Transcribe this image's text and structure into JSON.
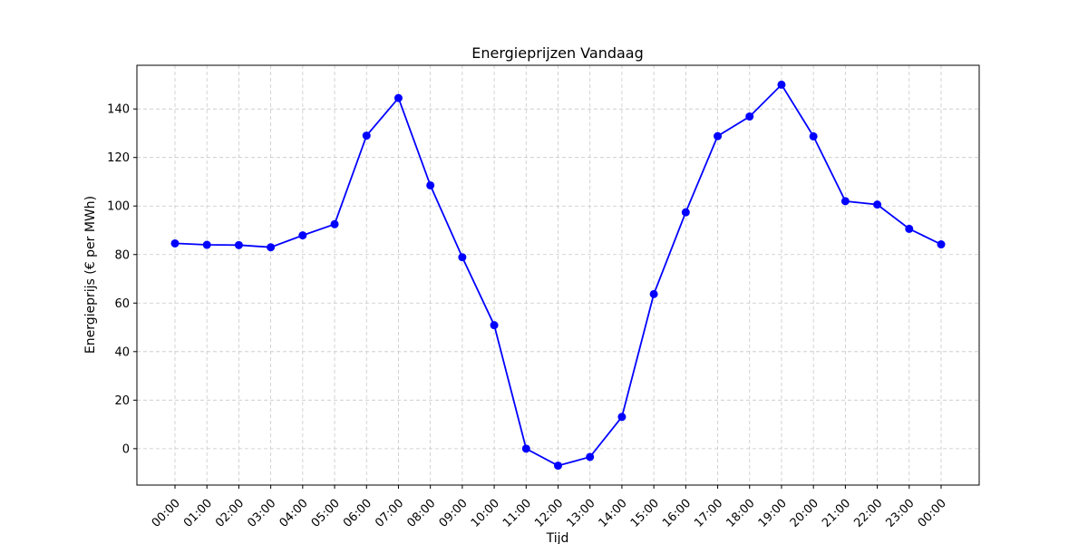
{
  "chart_data": {
    "type": "line",
    "title": "Energieprijzen Vandaag",
    "xlabel": "Tijd",
    "ylabel": "Energieprijs (€ per MWh)",
    "categories": [
      "00:00",
      "01:00",
      "02:00",
      "03:00",
      "04:00",
      "05:00",
      "06:00",
      "07:00",
      "08:00",
      "09:00",
      "10:00",
      "11:00",
      "12:00",
      "13:00",
      "14:00",
      "15:00",
      "16:00",
      "17:00",
      "18:00",
      "19:00",
      "20:00",
      "21:00",
      "22:00",
      "23:00",
      "00:00"
    ],
    "values": [
      84.6,
      84.0,
      83.9,
      83.0,
      87.9,
      92.5,
      129.0,
      144.5,
      108.5,
      78.9,
      50.9,
      0.0,
      -7.0,
      -3.4,
      13.1,
      63.7,
      97.4,
      128.8,
      136.9,
      150.0,
      128.7,
      102.0,
      100.6,
      90.6,
      84.2
    ],
    "ylim": [
      -15,
      158
    ],
    "yticks": [
      0,
      20,
      40,
      60,
      80,
      100,
      120,
      140
    ],
    "grid": true,
    "marker": "circle",
    "color": "#0000ff",
    "grid_color": "#c8c8c8"
  }
}
